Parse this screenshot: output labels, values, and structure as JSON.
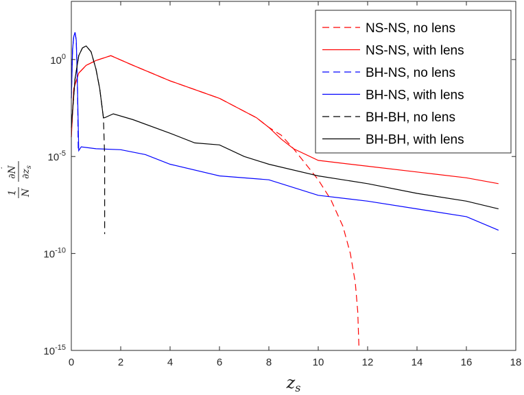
{
  "chart_data": {
    "type": "line",
    "title": "",
    "xlabel": "z_s",
    "ylabel": "\\frac{1}{\\dot N}\\frac{\\partial \\dot N}{\\partial z_s}",
    "xlim": [
      0,
      18
    ],
    "ylim_log10": [
      -15,
      3
    ],
    "yscale": "log",
    "grid": false,
    "legend_position": "top-right",
    "x_ticks": [
      "0",
      "2",
      "4",
      "6",
      "8",
      "10",
      "12",
      "14",
      "16",
      "18"
    ],
    "y_ticks": [
      {
        "base": "10",
        "exp": "-15",
        "log10": -15
      },
      {
        "base": "10",
        "exp": "-10",
        "log10": -10
      },
      {
        "base": "10",
        "exp": "-5",
        "log10": -5
      },
      {
        "base": "10",
        "exp": "0",
        "log10": 0
      }
    ],
    "series": [
      {
        "name": "NS-NS, no lens",
        "color": "#ff0000",
        "dash": true,
        "x_log10y": [
          [
            0,
            -4
          ],
          [
            0.1,
            -1.5
          ],
          [
            0.3,
            -0.7
          ],
          [
            0.6,
            -0.3
          ],
          [
            1.0,
            -0.05
          ],
          [
            1.6,
            0.2
          ],
          [
            2.5,
            -0.3
          ],
          [
            4,
            -1.1
          ],
          [
            6,
            -2.0
          ],
          [
            7.5,
            -3.0
          ],
          [
            8.0,
            -3.5
          ],
          [
            8.5,
            -3.9
          ],
          [
            9.0,
            -4.6
          ],
          [
            9.5,
            -5.4
          ],
          [
            10.0,
            -6.2
          ],
          [
            10.5,
            -7.2
          ],
          [
            11.0,
            -8.6
          ],
          [
            11.3,
            -10.0
          ],
          [
            11.5,
            -11.5
          ],
          [
            11.6,
            -13.0
          ],
          [
            11.65,
            -14.9
          ]
        ]
      },
      {
        "name": "NS-NS, with lens",
        "color": "#ff0000",
        "dash": false,
        "x_log10y": [
          [
            0,
            -4
          ],
          [
            0.1,
            -1.5
          ],
          [
            0.3,
            -0.7
          ],
          [
            0.6,
            -0.3
          ],
          [
            1.0,
            -0.05
          ],
          [
            1.6,
            0.2
          ],
          [
            2.5,
            -0.3
          ],
          [
            4,
            -1.1
          ],
          [
            6,
            -2.0
          ],
          [
            7.5,
            -3.0
          ],
          [
            8.0,
            -3.5
          ],
          [
            8.5,
            -4.1
          ],
          [
            9.0,
            -4.6
          ],
          [
            10,
            -5.2
          ],
          [
            12,
            -5.5
          ],
          [
            14,
            -5.8
          ],
          [
            16,
            -6.1
          ],
          [
            17.3,
            -6.4
          ]
        ]
      },
      {
        "name": "BH-NS, no lens",
        "color": "#0000ff",
        "dash": true,
        "x_log10y": [
          [
            0,
            -2
          ],
          [
            0.05,
            0.5
          ],
          [
            0.1,
            1.2
          ],
          [
            0.15,
            1.4
          ],
          [
            0.2,
            1.0
          ],
          [
            0.25,
            -1.5
          ],
          [
            0.28,
            -4.7
          ]
        ]
      },
      {
        "name": "BH-NS, with lens",
        "color": "#0000ff",
        "dash": false,
        "x_log10y": [
          [
            0,
            -2
          ],
          [
            0.05,
            0.5
          ],
          [
            0.1,
            1.2
          ],
          [
            0.15,
            1.4
          ],
          [
            0.2,
            1.0
          ],
          [
            0.25,
            -1.5
          ],
          [
            0.3,
            -4.7
          ],
          [
            0.4,
            -4.5
          ],
          [
            1.0,
            -4.6
          ],
          [
            2,
            -4.65
          ],
          [
            3,
            -4.9
          ],
          [
            4,
            -5.4
          ],
          [
            6,
            -6.0
          ],
          [
            8,
            -6.2
          ],
          [
            10,
            -7.0
          ],
          [
            12,
            -7.3
          ],
          [
            14,
            -7.7
          ],
          [
            16,
            -8.1
          ],
          [
            17.3,
            -8.8
          ]
        ]
      },
      {
        "name": "BH-BH, no lens",
        "color": "#000000",
        "dash": true,
        "x_log10y": [
          [
            0,
            -3.5
          ],
          [
            0.15,
            -1.0
          ],
          [
            0.3,
            0.2
          ],
          [
            0.45,
            0.6
          ],
          [
            0.6,
            0.7
          ],
          [
            0.8,
            0.4
          ],
          [
            1.0,
            -0.5
          ],
          [
            1.15,
            -1.5
          ],
          [
            1.3,
            -3.0
          ],
          [
            1.35,
            -5.0
          ],
          [
            1.35,
            -9.0
          ]
        ]
      },
      {
        "name": "BH-BH, with lens",
        "color": "#000000",
        "dash": false,
        "x_log10y": [
          [
            0,
            -3.5
          ],
          [
            0.15,
            -1.0
          ],
          [
            0.3,
            0.2
          ],
          [
            0.45,
            0.6
          ],
          [
            0.6,
            0.7
          ],
          [
            0.8,
            0.4
          ],
          [
            1.0,
            -0.5
          ],
          [
            1.15,
            -1.5
          ],
          [
            1.3,
            -3.0
          ],
          [
            1.35,
            -3.0
          ],
          [
            1.7,
            -2.8
          ],
          [
            2.5,
            -3.1
          ],
          [
            4,
            -3.8
          ],
          [
            5,
            -4.3
          ],
          [
            6,
            -4.4
          ],
          [
            7,
            -5.0
          ],
          [
            8,
            -5.4
          ],
          [
            10,
            -6.0
          ],
          [
            12,
            -6.4
          ],
          [
            14,
            -6.9
          ],
          [
            16,
            -7.3
          ],
          [
            17.3,
            -7.7
          ]
        ]
      }
    ]
  }
}
